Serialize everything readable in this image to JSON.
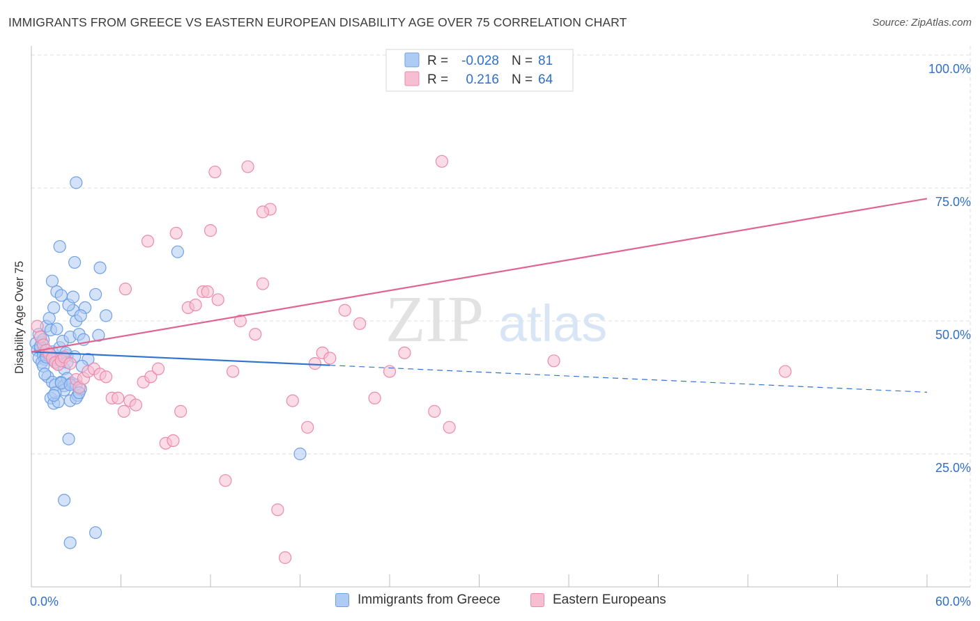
{
  "title": "IMMIGRANTS FROM GREECE VS EASTERN EUROPEAN DISABILITY AGE OVER 75 CORRELATION CHART",
  "source": "Source: ZipAtlas.com",
  "watermark": {
    "zip": "ZIP",
    "atlas": "atlas"
  },
  "colors": {
    "blue_fill": "#aecbf3",
    "blue_stroke": "#6fa0e6",
    "blue_line": "#2f74d0",
    "pink_fill": "#f7bdd0",
    "pink_stroke": "#eb8aad",
    "pink_line": "#e06491",
    "value_text": "#2f6fc9",
    "grid": "#dcdcdc"
  },
  "chart_data": {
    "type": "scatter",
    "title": "IMMIGRANTS FROM GREECE VS EASTERN EUROPEAN DISABILITY AGE OVER 75 CORRELATION CHART",
    "xlabel": "",
    "ylabel": "Disability Age Over 75",
    "xlim": [
      0,
      60
    ],
    "ylim": [
      0,
      100
    ],
    "x_tick_labels": [
      "0.0%",
      "60.0%"
    ],
    "y_tick_values": [
      25,
      50,
      75,
      100
    ],
    "y_tick_labels": [
      "25.0%",
      "50.0%",
      "75.0%",
      "100.0%"
    ],
    "legend": {
      "stats": [
        {
          "r_label": "R =",
          "r_value": "-0.028",
          "n_label": "N =",
          "n_value": "81"
        },
        {
          "r_label": "R =",
          "r_value": "0.216",
          "n_label": "N =",
          "n_value": "64"
        }
      ]
    },
    "series": [
      {
        "name": "Immigrants from Greece",
        "color": "#aecbf3",
        "trend": {
          "x0": 0,
          "y0": 44.2,
          "x1": 60,
          "y1": 36.6,
          "solid_until_x": 20
        },
        "points": [
          [
            0.3,
            45.8
          ],
          [
            0.4,
            44.5
          ],
          [
            0.5,
            43.0
          ],
          [
            0.6,
            44.8
          ],
          [
            0.7,
            46.0
          ],
          [
            0.8,
            43.5
          ],
          [
            0.9,
            42.8
          ],
          [
            1.0,
            44.0
          ],
          [
            0.5,
            47.5
          ],
          [
            0.6,
            45.2
          ],
          [
            0.7,
            42.2
          ],
          [
            0.8,
            41.5
          ],
          [
            1.2,
            43.8
          ],
          [
            1.4,
            44.2
          ],
          [
            1.5,
            42.6
          ],
          [
            1.6,
            43.0
          ],
          [
            1.8,
            41.8
          ],
          [
            2.0,
            43.2
          ],
          [
            2.2,
            41.0
          ],
          [
            2.4,
            43.5
          ],
          [
            1.0,
            49.0
          ],
          [
            1.2,
            50.5
          ],
          [
            1.3,
            48.3
          ],
          [
            1.5,
            52.5
          ],
          [
            1.7,
            48.5
          ],
          [
            1.9,
            45.0
          ],
          [
            2.1,
            46.2
          ],
          [
            2.3,
            44.0
          ],
          [
            2.6,
            47.0
          ],
          [
            2.8,
            52.0
          ],
          [
            3.0,
            50.0
          ],
          [
            3.2,
            47.5
          ],
          [
            1.4,
            57.5
          ],
          [
            1.7,
            55.5
          ],
          [
            2.0,
            54.8
          ],
          [
            2.5,
            53.0
          ],
          [
            2.8,
            54.5
          ],
          [
            3.6,
            52.5
          ],
          [
            1.1,
            39.5
          ],
          [
            1.4,
            38.5
          ],
          [
            1.6,
            38.0
          ],
          [
            2.0,
            38.5
          ],
          [
            2.2,
            37.8
          ],
          [
            2.4,
            39.2
          ],
          [
            2.7,
            38.3
          ],
          [
            3.0,
            38.0
          ],
          [
            1.3,
            35.5
          ],
          [
            1.5,
            34.5
          ],
          [
            1.8,
            34.8
          ],
          [
            2.2,
            37.0
          ],
          [
            2.6,
            35.0
          ],
          [
            3.1,
            36.0
          ],
          [
            3.3,
            37.2
          ],
          [
            2.0,
            38.3
          ],
          [
            1.6,
            36.5
          ],
          [
            4.6,
            60.0
          ],
          [
            3.8,
            42.8
          ],
          [
            3.4,
            41.5
          ],
          [
            3.0,
            35.5
          ],
          [
            2.5,
            27.8
          ],
          [
            2.2,
            16.3
          ],
          [
            2.6,
            8.3
          ],
          [
            4.3,
            10.2
          ],
          [
            2.9,
            61.0
          ],
          [
            3.0,
            76.0
          ],
          [
            1.9,
            64.0
          ],
          [
            4.3,
            55.0
          ],
          [
            3.3,
            51.0
          ],
          [
            5.0,
            51.0
          ],
          [
            3.5,
            46.5
          ],
          [
            4.5,
            47.3
          ],
          [
            9.8,
            63.0
          ],
          [
            18.0,
            25.0
          ],
          [
            1.5,
            36.0
          ],
          [
            0.9,
            40.0
          ],
          [
            2.6,
            38.0
          ],
          [
            2.9,
            43.3
          ],
          [
            1.0,
            43.2
          ],
          [
            0.8,
            46.5
          ],
          [
            2.4,
            42.2
          ],
          [
            3.2,
            36.5
          ]
        ]
      },
      {
        "name": "Eastern Europeans",
        "color": "#f7bdd0",
        "trend": {
          "x0": 0,
          "y0": 44.2,
          "x1": 60,
          "y1": 73.0
        },
        "points": [
          [
            0.4,
            49.0
          ],
          [
            0.6,
            47.0
          ],
          [
            0.8,
            45.5
          ],
          [
            1.0,
            44.5
          ],
          [
            1.2,
            43.8
          ],
          [
            1.4,
            43.0
          ],
          [
            1.6,
            42.2
          ],
          [
            1.8,
            41.8
          ],
          [
            2.0,
            42.5
          ],
          [
            2.2,
            43.2
          ],
          [
            2.6,
            42.0
          ],
          [
            3.0,
            39.0
          ],
          [
            3.2,
            37.5
          ],
          [
            3.5,
            39.2
          ],
          [
            3.8,
            40.5
          ],
          [
            4.2,
            41.0
          ],
          [
            4.6,
            40.0
          ],
          [
            5.0,
            39.5
          ],
          [
            5.4,
            35.5
          ],
          [
            5.8,
            35.5
          ],
          [
            6.2,
            33.0
          ],
          [
            6.6,
            35.0
          ],
          [
            7.0,
            34.2
          ],
          [
            7.5,
            38.5
          ],
          [
            8.0,
            39.5
          ],
          [
            8.5,
            41.0
          ],
          [
            9.0,
            27.0
          ],
          [
            9.5,
            27.5
          ],
          [
            10.0,
            33.0
          ],
          [
            10.5,
            52.5
          ],
          [
            11.0,
            53.0
          ],
          [
            11.5,
            55.5
          ],
          [
            12.0,
            67.0
          ],
          [
            12.5,
            54.0
          ],
          [
            13.0,
            20.0
          ],
          [
            13.5,
            40.5
          ],
          [
            14.0,
            50.0
          ],
          [
            14.5,
            79.0
          ],
          [
            15.0,
            47.5
          ],
          [
            15.5,
            57.0
          ],
          [
            16.0,
            71.0
          ],
          [
            16.5,
            14.5
          ],
          [
            17.0,
            5.5
          ],
          [
            17.5,
            35.0
          ],
          [
            18.5,
            30.0
          ],
          [
            19.0,
            42.0
          ],
          [
            19.5,
            44.0
          ],
          [
            20.0,
            43.0
          ],
          [
            21.0,
            52.0
          ],
          [
            22.0,
            49.5
          ],
          [
            23.0,
            35.5
          ],
          [
            24.0,
            40.5
          ],
          [
            25.0,
            44.0
          ],
          [
            27.0,
            33.0
          ],
          [
            28.0,
            30.0
          ],
          [
            35.0,
            42.5
          ],
          [
            50.5,
            40.5
          ],
          [
            7.8,
            65.0
          ],
          [
            12.3,
            78.0
          ],
          [
            15.5,
            70.5
          ],
          [
            9.7,
            66.5
          ],
          [
            11.8,
            55.5
          ],
          [
            27.5,
            80.0
          ],
          [
            6.3,
            56.0
          ]
        ]
      }
    ]
  }
}
